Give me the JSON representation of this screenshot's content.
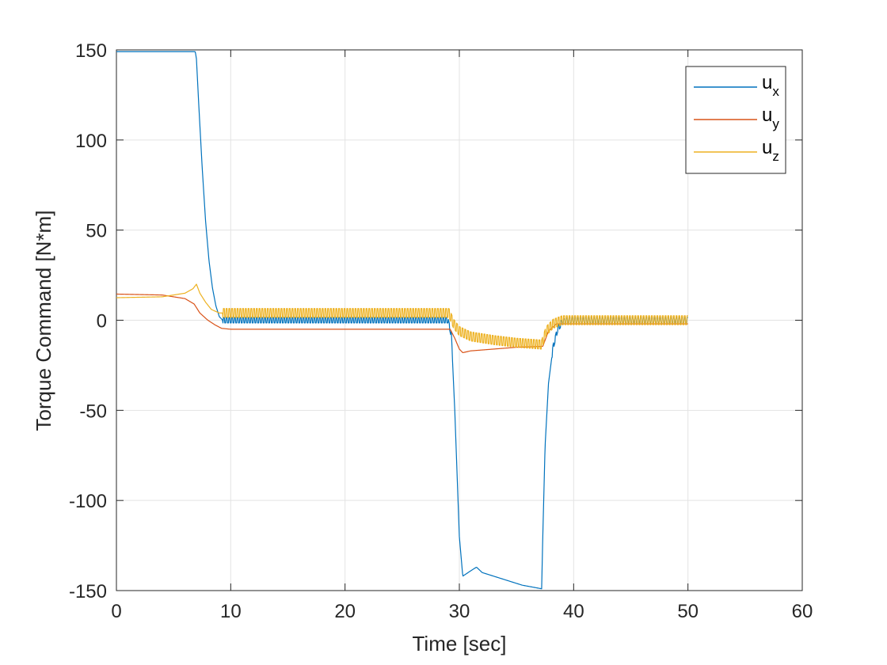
{
  "chart_data": {
    "type": "line",
    "title": "",
    "xlabel": "Time [sec]",
    "ylabel": "Torque Command [N*m]",
    "xlim": [
      0,
      60
    ],
    "ylim": [
      -150,
      150
    ],
    "xticks": [
      0,
      10,
      20,
      30,
      40,
      50,
      60
    ],
    "yticks": [
      -150,
      -100,
      -50,
      0,
      50,
      100,
      150
    ],
    "xtick_labels": [
      "0",
      "10",
      "20",
      "30",
      "40",
      "50",
      "60"
    ],
    "ytick_labels": [
      "-150",
      "-100",
      "-50",
      "0",
      "50",
      "100",
      "150"
    ],
    "grid": true,
    "legend_position": "top-right",
    "series": [
      {
        "name": "u_x",
        "legend_main": "u",
        "legend_sub": "x",
        "color": "#0072BD",
        "ripple": 1.5,
        "points": [
          [
            0,
            149
          ],
          [
            6.9,
            149
          ],
          [
            7.0,
            145
          ],
          [
            7.2,
            120
          ],
          [
            7.5,
            85
          ],
          [
            7.8,
            55
          ],
          [
            8.1,
            33
          ],
          [
            8.4,
            18
          ],
          [
            8.7,
            8
          ],
          [
            9.0,
            2
          ],
          [
            9.3,
            0
          ],
          [
            29.0,
            0
          ],
          [
            29.3,
            -8
          ],
          [
            29.6,
            -50
          ],
          [
            30.0,
            -120
          ],
          [
            30.3,
            -142
          ],
          [
            31.0,
            -139
          ],
          [
            31.5,
            -137
          ],
          [
            32.0,
            -140
          ],
          [
            34.0,
            -144
          ],
          [
            35.5,
            -147
          ],
          [
            37.2,
            -149
          ],
          [
            37.3,
            -120
          ],
          [
            37.5,
            -70
          ],
          [
            37.8,
            -35
          ],
          [
            38.2,
            -15
          ],
          [
            38.6,
            -5
          ],
          [
            39.0,
            -1
          ],
          [
            39.5,
            0
          ],
          [
            50,
            0
          ]
        ]
      },
      {
        "name": "u_y",
        "legend_main": "u",
        "legend_sub": "y",
        "color": "#D95319",
        "ripple": 0,
        "points": [
          [
            0,
            14.5
          ],
          [
            4,
            14
          ],
          [
            6.0,
            12
          ],
          [
            6.8,
            9
          ],
          [
            7.3,
            4
          ],
          [
            8.0,
            0
          ],
          [
            8.6,
            -2.5
          ],
          [
            9.2,
            -4.5
          ],
          [
            10,
            -5
          ],
          [
            29.2,
            -5
          ],
          [
            29.6,
            -10
          ],
          [
            30.0,
            -16
          ],
          [
            30.3,
            -18
          ],
          [
            31,
            -17
          ],
          [
            33,
            -16
          ],
          [
            35,
            -15
          ],
          [
            37.3,
            -14.5
          ],
          [
            37.8,
            -6
          ],
          [
            38.5,
            -2
          ],
          [
            39,
            -2
          ],
          [
            50,
            -2
          ]
        ]
      },
      {
        "name": "u_z",
        "legend_main": "u",
        "legend_sub": "z",
        "color": "#EDB120",
        "ripple": 2.5,
        "points": [
          [
            0,
            12.5
          ],
          [
            4,
            13
          ],
          [
            6.0,
            15
          ],
          [
            6.7,
            17.5
          ],
          [
            7.0,
            20
          ],
          [
            7.3,
            15
          ],
          [
            7.8,
            10
          ],
          [
            8.3,
            6
          ],
          [
            9.0,
            4
          ],
          [
            9.2,
            4
          ],
          [
            29.1,
            4
          ],
          [
            29.5,
            -2
          ],
          [
            30.0,
            -6
          ],
          [
            31,
            -9
          ],
          [
            33,
            -11
          ],
          [
            35,
            -12.5
          ],
          [
            37.2,
            -13.5
          ],
          [
            37.6,
            -6
          ],
          [
            38.2,
            -2
          ],
          [
            39,
            0
          ],
          [
            50,
            0
          ]
        ]
      }
    ]
  }
}
